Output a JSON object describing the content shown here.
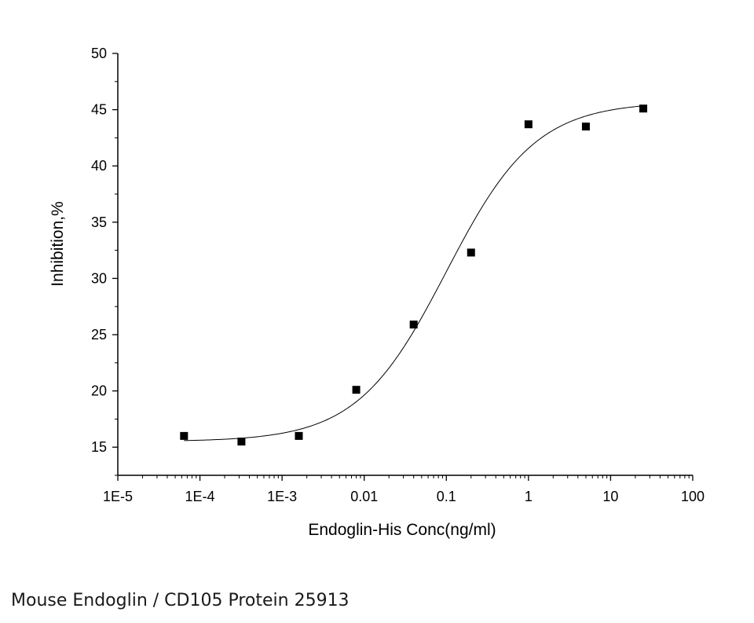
{
  "caption": "Mouse Endoglin / CD105 Protein 25913",
  "chart_data": {
    "type": "scatter",
    "xlabel": "Endoglin-His Conc(ng/ml)",
    "ylabel": "Inhibition,%",
    "x_scale": "log",
    "xlim": [
      1e-05,
      100
    ],
    "ylim": [
      12.5,
      50
    ],
    "x_ticks": [
      "1E-5",
      "1E-4",
      "1E-3",
      "0.01",
      "0.1",
      "1",
      "10",
      "100"
    ],
    "y_ticks": [
      "15",
      "20",
      "25",
      "30",
      "35",
      "40",
      "45",
      "50"
    ],
    "grid": false,
    "legend": "none",
    "series": [
      {
        "marker": "square",
        "color": "#000000",
        "points": [
          {
            "x": 6.4e-05,
            "y": 16.0
          },
          {
            "x": 0.00032,
            "y": 15.5
          },
          {
            "x": 0.0016,
            "y": 16.0
          },
          {
            "x": 0.008,
            "y": 20.1
          },
          {
            "x": 0.04,
            "y": 25.9
          },
          {
            "x": 0.2,
            "y": 32.3
          },
          {
            "x": 1,
            "y": 43.7
          },
          {
            "x": 5,
            "y": 43.5
          },
          {
            "x": 25,
            "y": 45.1
          }
        ]
      }
    ],
    "fit_curve": {
      "type": "four-parameter logistic",
      "color": "#000000",
      "bottom": 15.5,
      "top": 45.7,
      "ec50": 0.1,
      "hill": 0.8,
      "x_range": [
        6.4e-05,
        25
      ]
    }
  }
}
